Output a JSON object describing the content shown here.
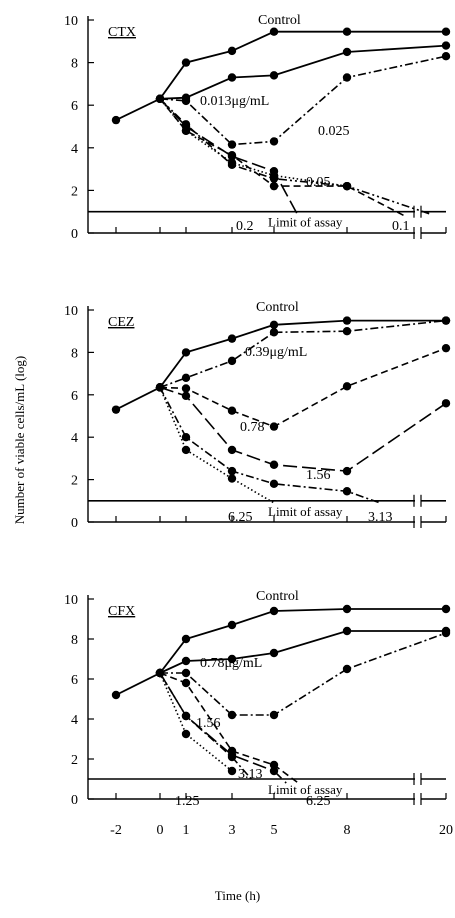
{
  "ylabel": "Number of viable cells/mL (log)",
  "xlabel": "Time (h)",
  "x_tick_labels": [
    "-2",
    "0",
    "1",
    "3",
    "5",
    "8",
    "20"
  ],
  "y_tick_labels": [
    "0",
    "2",
    "4",
    "6",
    "8",
    "10"
  ],
  "limit_label": "Limit of assay",
  "chart_data": [
    {
      "type": "line",
      "panel": "CTX",
      "title": "CTX",
      "ylim": [
        0,
        10
      ],
      "limit_of_assay": 1,
      "series": [
        {
          "name": "Control",
          "label": "Control",
          "style": "solid",
          "x": [
            -2,
            0,
            1,
            3,
            5,
            8,
            20
          ],
          "y": [
            5.3,
            6.3,
            8.0,
            8.55,
            9.45,
            9.45,
            9.45
          ]
        },
        {
          "name": "0.013μg/mL",
          "label": "0.013μg/mL",
          "style": "solid",
          "x": [
            0,
            1,
            3,
            5,
            8,
            20
          ],
          "y": [
            6.3,
            6.35,
            7.3,
            7.4,
            8.5,
            8.8
          ]
        },
        {
          "name": "0.025",
          "label": "0.025",
          "style": "dashdot",
          "x": [
            0,
            1,
            3,
            5,
            8,
            20
          ],
          "y": [
            6.3,
            6.2,
            4.15,
            4.3,
            7.3,
            8.3
          ]
        },
        {
          "name": "0.05",
          "label": "0.05",
          "style": "dashdotdot",
          "x": [
            0,
            1,
            3,
            5,
            8,
            18
          ],
          "y": [
            6.3,
            5.1,
            3.2,
            2.55,
            2.2,
            0.9
          ]
        },
        {
          "name": "0.1",
          "label": "0.1",
          "style": "dash",
          "x": [
            0,
            1,
            3,
            5,
            8,
            15
          ],
          "y": [
            6.3,
            4.8,
            3.65,
            2.2,
            2.2,
            0.8
          ]
        },
        {
          "name": "0.2",
          "label": "0.2",
          "style": "longdash",
          "x": [
            0,
            1,
            3,
            5,
            6
          ],
          "y": [
            6.3,
            5.0,
            3.6,
            2.9,
            0.8
          ]
        },
        {
          "name": "",
          "label": "",
          "style": "dotted",
          "x": [
            0,
            1,
            3,
            5,
            8
          ],
          "y": [
            6.3,
            4.8,
            3.3,
            2.7,
            2.2
          ]
        }
      ]
    },
    {
      "type": "line",
      "panel": "CEZ",
      "title": "CEZ",
      "ylim": [
        0,
        10
      ],
      "limit_of_assay": 1,
      "series": [
        {
          "name": "Control",
          "label": "Control",
          "style": "solid",
          "x": [
            -2,
            0,
            1,
            3,
            5,
            8,
            20
          ],
          "y": [
            5.3,
            6.35,
            8.0,
            8.65,
            9.3,
            9.5,
            9.5
          ]
        },
        {
          "name": "0.39μg/mL",
          "label": "0.39μg/mL",
          "style": "dashdot",
          "x": [
            0,
            1,
            3,
            5,
            8,
            20
          ],
          "y": [
            6.35,
            6.8,
            7.6,
            8.95,
            9.0,
            9.5
          ]
        },
        {
          "name": "0.78",
          "label": "0.78",
          "style": "dash",
          "x": [
            0,
            1,
            3,
            5,
            8,
            20
          ],
          "y": [
            6.35,
            6.3,
            5.25,
            4.5,
            6.4,
            8.2
          ]
        },
        {
          "name": "1.56",
          "label": "1.56",
          "style": "longdash",
          "x": [
            0,
            1,
            3,
            5,
            8,
            20
          ],
          "y": [
            6.35,
            5.95,
            3.4,
            2.7,
            2.4,
            5.6
          ]
        },
        {
          "name": "3.13",
          "label": "3.13",
          "style": "dashdot",
          "x": [
            0,
            1,
            3,
            5,
            8,
            12
          ],
          "y": [
            6.35,
            4.0,
            2.4,
            1.8,
            1.45,
            0.9
          ]
        },
        {
          "name": "6.25",
          "label": "6.25",
          "style": "dotted",
          "x": [
            0,
            1,
            3,
            5
          ],
          "y": [
            6.35,
            3.4,
            2.05,
            0.9
          ]
        }
      ]
    },
    {
      "type": "line",
      "panel": "CFX",
      "title": "CFX",
      "ylim": [
        0,
        10
      ],
      "limit_of_assay": 1,
      "series": [
        {
          "name": "Control",
          "label": "Control",
          "style": "solid",
          "x": [
            -2,
            0,
            1,
            3,
            5,
            8,
            20
          ],
          "y": [
            5.2,
            6.3,
            8.0,
            8.7,
            9.4,
            9.5,
            9.5
          ]
        },
        {
          "name": "0.78μg/mL",
          "label": "0.78μg/mL",
          "style": "solid",
          "x": [
            0,
            1,
            3,
            5,
            8,
            20
          ],
          "y": [
            6.3,
            6.9,
            7.0,
            7.3,
            8.4,
            8.4
          ]
        },
        {
          "name": "",
          "label": "",
          "style": "dashdot",
          "x": [
            0,
            1,
            3,
            5,
            8,
            20
          ],
          "y": [
            6.3,
            6.3,
            4.2,
            4.2,
            6.5,
            8.3
          ]
        },
        {
          "name": "1.56",
          "label": "1.56",
          "style": "dash",
          "x": [
            0,
            1,
            3,
            5,
            6
          ],
          "y": [
            6.3,
            5.8,
            2.4,
            1.7,
            0.8
          ]
        },
        {
          "name": "3.13",
          "label": "3.13",
          "style": "longdash",
          "x": [
            0,
            1,
            3,
            5,
            5.5
          ],
          "y": [
            6.3,
            4.15,
            2.2,
            1.4,
            0.8
          ]
        },
        {
          "name": "6.25",
          "label": "6.25",
          "style": "dashdot",
          "x": [
            0,
            1,
            3,
            4
          ],
          "y": [
            6.3,
            4.15,
            2.1,
            0.9
          ]
        },
        {
          "name": "1.25",
          "label": "1.25",
          "style": "dotted",
          "x": [
            0,
            1,
            3
          ],
          "y": [
            6.3,
            3.25,
            1.4
          ]
        }
      ]
    }
  ]
}
